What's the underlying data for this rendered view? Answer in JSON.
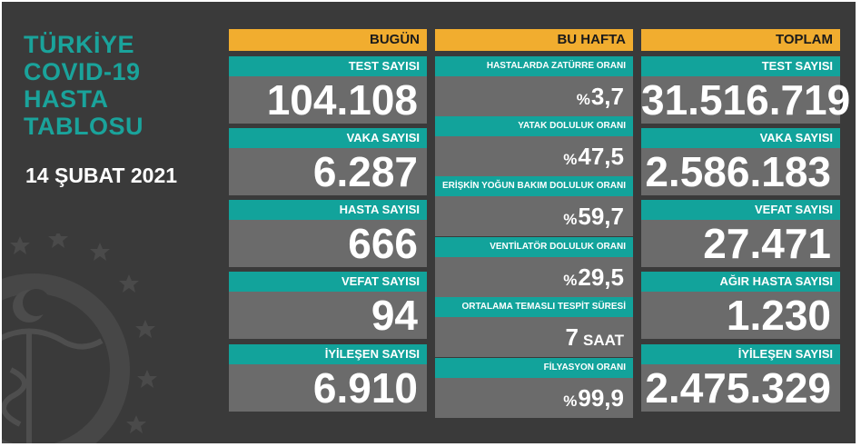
{
  "title_lines": [
    "TÜRKİYE",
    "COVID-19",
    "HASTA",
    "TABLOSU"
  ],
  "date": "14 ŞUBAT 2021",
  "columns": {
    "today": {
      "header": "BUGÜN",
      "cards": [
        {
          "label": "TEST SAYISI",
          "value": "104.108"
        },
        {
          "label": "VAKA SAYISI",
          "value": "6.287"
        },
        {
          "label": "HASTA SAYISI",
          "value": "666"
        },
        {
          "label": "VEFAT SAYISI",
          "value": "94"
        },
        {
          "label": "İYİLEŞEN SAYISI",
          "value": "6.910"
        }
      ]
    },
    "week": {
      "header": "BU HAFTA",
      "cards": [
        {
          "label": "HASTALARDA ZATÜRRE ORANI",
          "prefix": "%",
          "value": "3,7",
          "suffix": ""
        },
        {
          "label": "YATAK DOLULUK ORANI",
          "prefix": "%",
          "value": "47,5",
          "suffix": ""
        },
        {
          "label": "ERİŞKİN YOĞUN BAKIM DOLULUK ORANI",
          "prefix": "%",
          "value": "59,7",
          "suffix": ""
        },
        {
          "label": "VENTİLATÖR DOLULUK ORANI",
          "prefix": "%",
          "value": "29,5",
          "suffix": ""
        },
        {
          "label": "ORTALAMA TEMASLI TESPİT SÜRESİ",
          "prefix": "",
          "value": "7",
          "suffix": "SAAT"
        },
        {
          "label": "FİLYASYON ORANI",
          "prefix": "%",
          "value": "99,9",
          "suffix": ""
        }
      ]
    },
    "total": {
      "header": "TOPLAM",
      "cards": [
        {
          "label": "TEST SAYISI",
          "value": "31.516.719"
        },
        {
          "label": "VAKA SAYISI",
          "value": "2.586.183"
        },
        {
          "label": "VEFAT SAYISI",
          "value": "27.471"
        },
        {
          "label": "AĞIR HASTA SAYISI",
          "value": "1.230"
        },
        {
          "label": "İYİLEŞEN SAYISI",
          "value": "2.475.329"
        }
      ]
    }
  },
  "colors": {
    "background": "#3a3a3a",
    "header_orange": "#f1ad2f",
    "label_teal": "#12a39b",
    "value_gray": "#6b6b6b",
    "title_teal": "#1aa39b"
  },
  "icons": [
    "ministry-of-health-emblem-icon",
    "star-icon",
    "crescent-icon",
    "caduceus-icon"
  ]
}
